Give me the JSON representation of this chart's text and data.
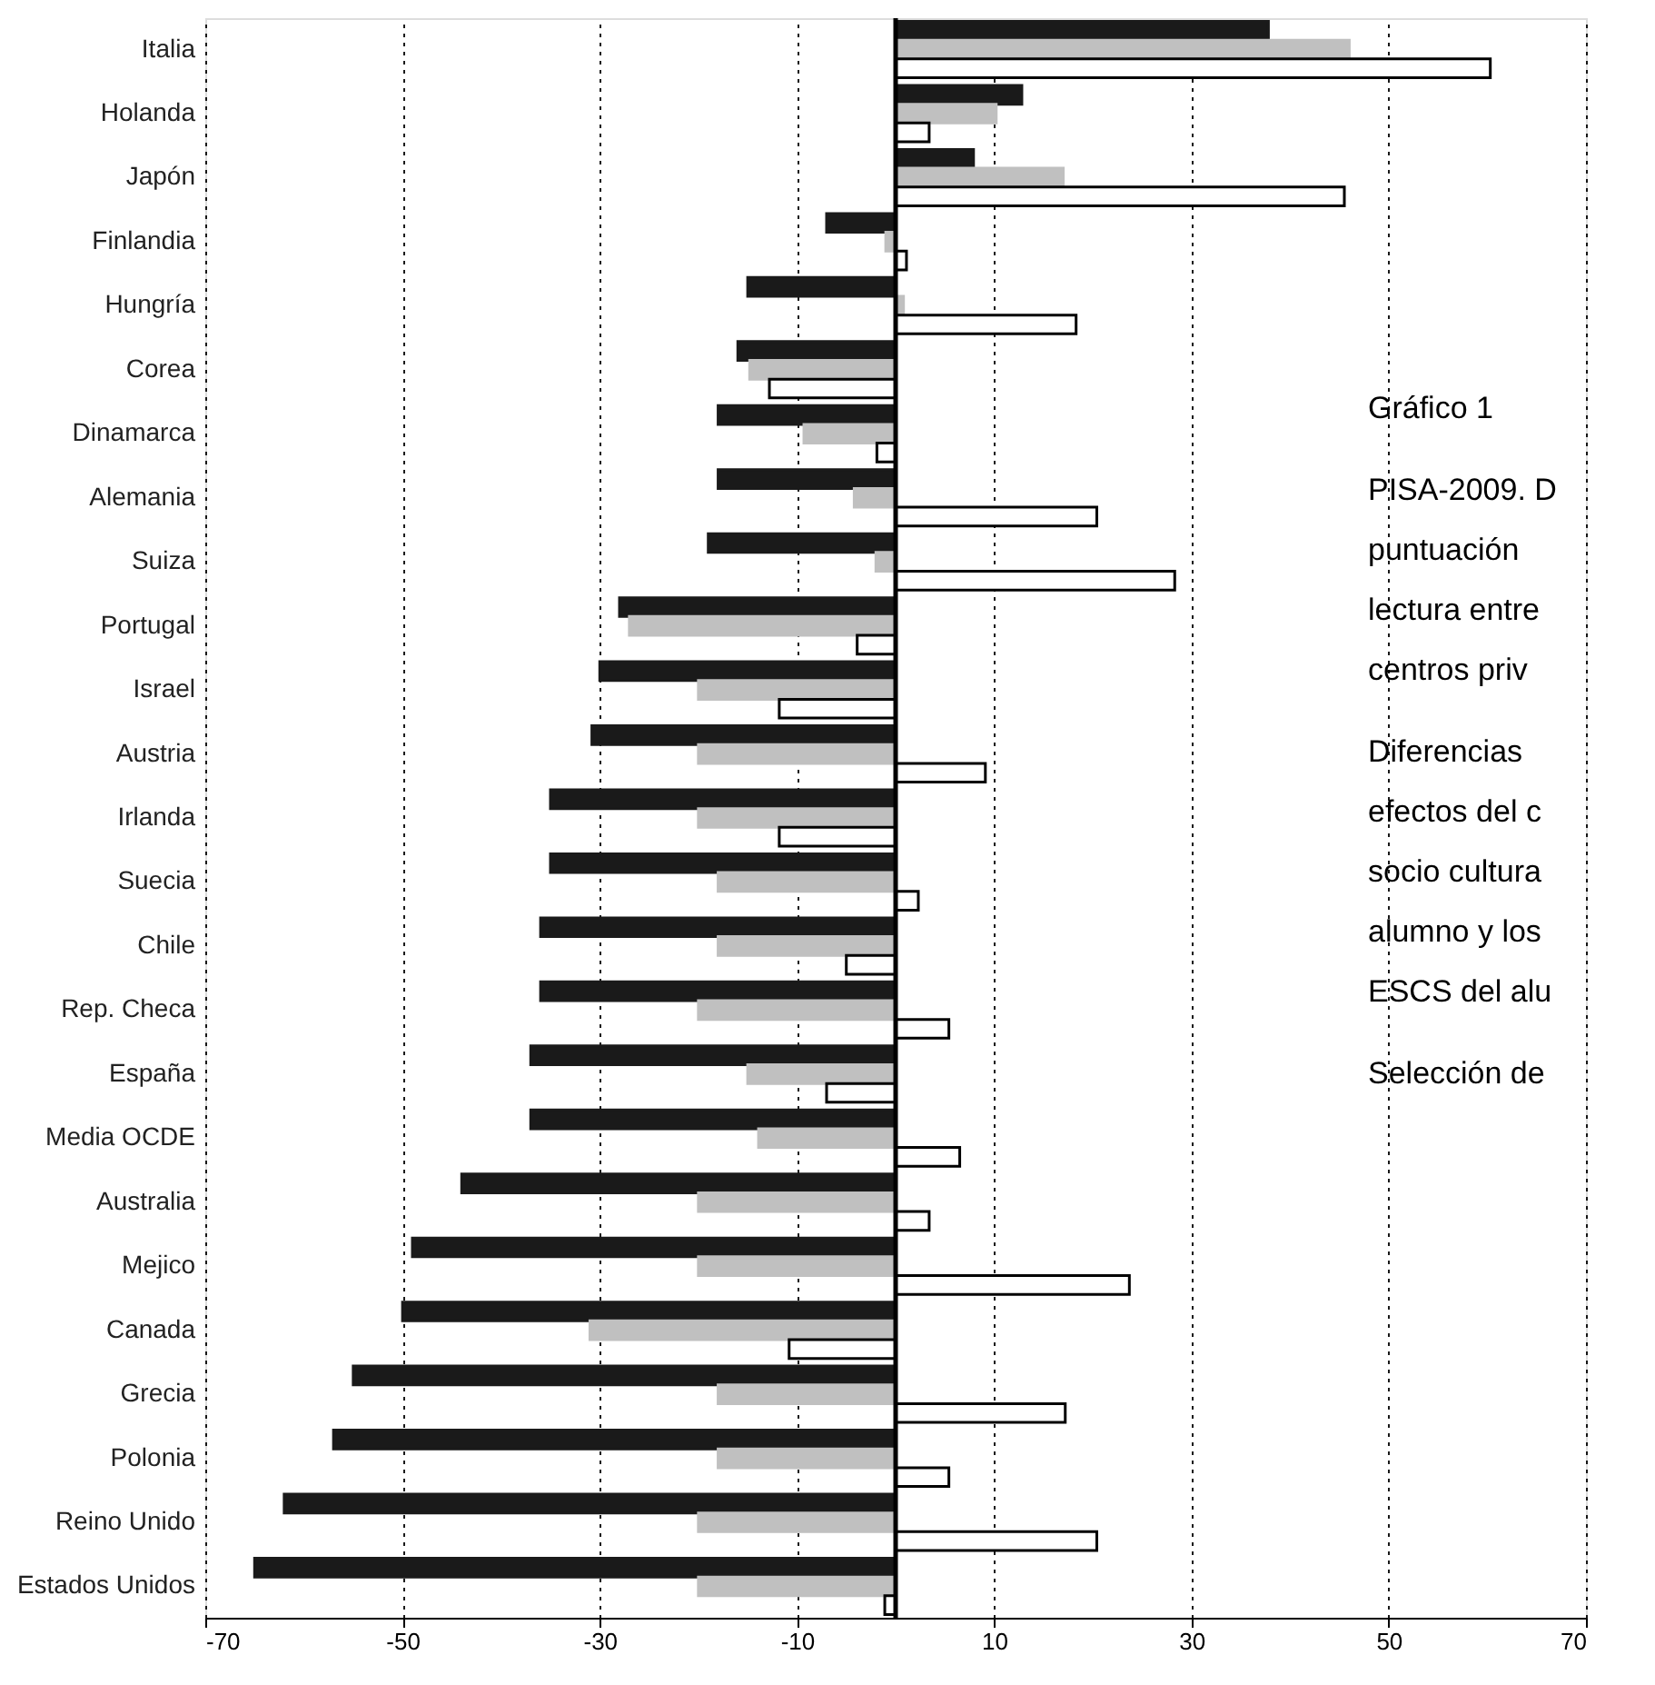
{
  "chart_data": {
    "type": "bar",
    "orientation": "horizontal",
    "categories": [
      "Italia",
      "Holanda",
      "Japón",
      "Finlandia",
      "Hungría",
      "Corea",
      "Dinamarca",
      "Alemania",
      "Suiza",
      "Portugal",
      "Israel",
      "Austria",
      "Irlanda",
      "Suecia",
      "Chile",
      "Rep. Checa",
      "España",
      "Media OCDE",
      "Australia",
      "Mejico",
      "Canada",
      "Grecia",
      "Polonia",
      "Reino Unido",
      "Estados Unidos"
    ],
    "series": [
      {
        "color": "#1a1a1a",
        "values": [
          37.8,
          12.8,
          7.9,
          -7,
          -15,
          -16,
          -18,
          -18,
          -19,
          -28,
          -30,
          -30.8,
          -35,
          -35,
          -36,
          -36,
          -37,
          -37,
          -44,
          -49,
          -50,
          -55,
          -57,
          -62,
          -65
        ]
      },
      {
        "color": "#c0c0c0",
        "values": [
          46,
          10.2,
          17,
          -1,
          0.8,
          -14.8,
          -9.3,
          -4.2,
          -2,
          -27,
          -20,
          -20,
          -20,
          -18,
          -18,
          -20,
          -15,
          -13.9,
          -20,
          -20,
          -31,
          -18,
          -18,
          -20,
          -20
        ]
      },
      {
        "color": "#ffffff",
        "values": [
          60.3,
          3.4,
          45.5,
          1.1,
          18.3,
          -12.8,
          -1.9,
          20.4,
          28.3,
          -3.9,
          -11.8,
          9.1,
          -11.8,
          2.3,
          -5,
          5.4,
          -7,
          6.5,
          3.4,
          23.7,
          -10.8,
          17.2,
          5.4,
          20.4,
          -1.1
        ]
      }
    ],
    "xlim": [
      -70,
      70
    ],
    "xticks": [
      -70,
      -50,
      -30,
      -10,
      10,
      30,
      50,
      70
    ],
    "grid": "x",
    "legend": false,
    "ref_lines": [
      {
        "axis": "x",
        "value": 0,
        "color": "#000000"
      }
    ],
    "annotations": [
      "Gráfico 1",
      "PISA-2009. D",
      "puntuación",
      "lectura entre",
      "centros priv",
      "Diferencias",
      "efectos del c",
      "socio cultura",
      "alumno y los",
      "ESCS del alu",
      "Selección de"
    ]
  }
}
